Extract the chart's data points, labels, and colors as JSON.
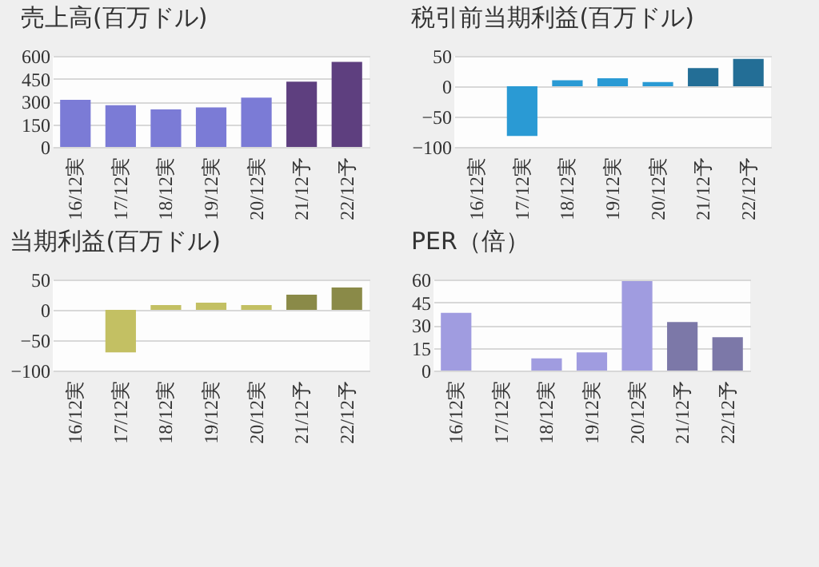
{
  "chart_data": [
    {
      "type": "bar",
      "title": "売上高(百万ドル)",
      "categories": [
        "16/12実",
        "17/12実",
        "18/12実",
        "19/12実",
        "20/12実",
        "21/12予",
        "22/12予"
      ],
      "values": [
        310,
        275,
        248,
        260,
        325,
        430,
        560
      ],
      "colors": [
        "#7b7bd6",
        "#7b7bd6",
        "#7b7bd6",
        "#7b7bd6",
        "#7b7bd6",
        "#5e3f7f",
        "#5e3f7f"
      ],
      "ylim": [
        0,
        600
      ],
      "yticks": [
        0,
        150,
        300,
        450,
        600
      ],
      "grid": "y"
    },
    {
      "type": "bar",
      "title": "税引前当期利益(百万ドル)",
      "categories": [
        "16/12実",
        "17/12実",
        "18/12実",
        "19/12実",
        "20/12実",
        "21/12予",
        "22/12予"
      ],
      "values": [
        null,
        -82,
        10,
        13,
        7,
        30,
        45
      ],
      "colors": [
        "#2a9ad4",
        "#2a9ad4",
        "#2a9ad4",
        "#2a9ad4",
        "#2a9ad4",
        "#236e96",
        "#236e96"
      ],
      "ylim": [
        -100,
        50
      ],
      "yticks": [
        -100,
        -50,
        0,
        50
      ],
      "grid": "y"
    },
    {
      "type": "bar",
      "title": "当期利益(百万ドル)",
      "categories": [
        "16/12実",
        "17/12実",
        "18/12実",
        "19/12実",
        "20/12実",
        "21/12予",
        "22/12予"
      ],
      "values": [
        null,
        -70,
        8,
        12,
        8,
        25,
        37
      ],
      "colors": [
        "#c3c063",
        "#c3c063",
        "#c3c063",
        "#c3c063",
        "#c3c063",
        "#8a8a48",
        "#8a8a48"
      ],
      "ylim": [
        -100,
        50
      ],
      "yticks": [
        -100,
        -50,
        0,
        50
      ],
      "grid": "y"
    },
    {
      "type": "bar",
      "title": "PER（倍）",
      "categories": [
        "16/12実",
        "17/12実",
        "18/12実",
        "19/12実",
        "20/12実",
        "21/12予",
        "22/12予"
      ],
      "values": [
        38,
        null,
        8,
        12,
        59,
        32,
        22
      ],
      "colors": [
        "#a09ce0",
        "#a09ce0",
        "#a09ce0",
        "#a09ce0",
        "#a09ce0",
        "#7c78a8",
        "#7c78a8"
      ],
      "ylim": [
        0,
        60
      ],
      "yticks": [
        0,
        15,
        30,
        45,
        60
      ],
      "grid": "y"
    }
  ]
}
